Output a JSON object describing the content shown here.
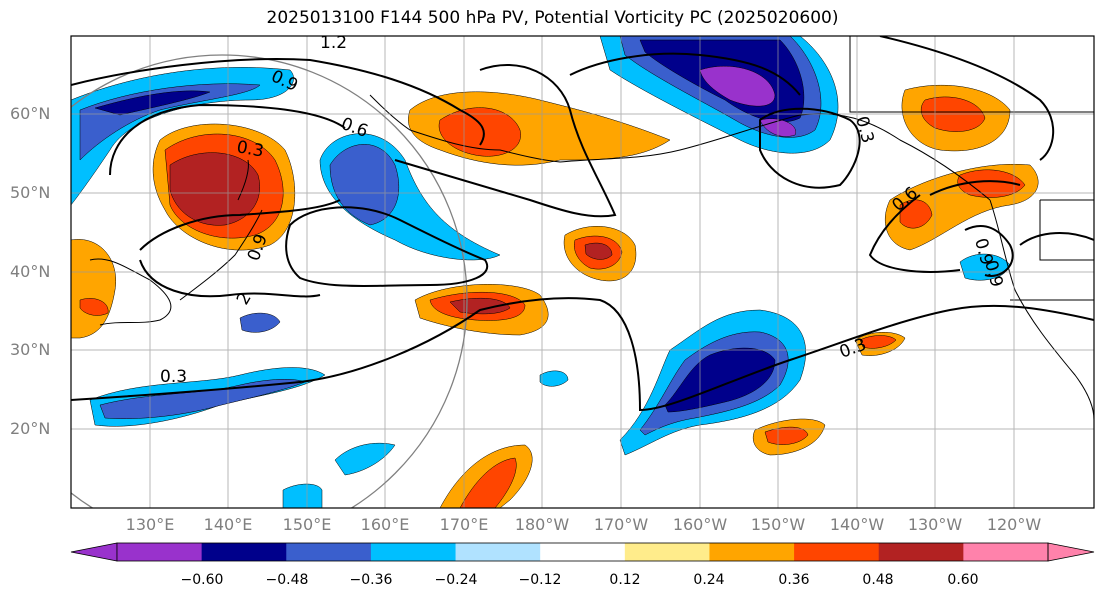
{
  "title": "2025013100 F144 500 hPa PV, Potential Vorticity PC (2025020600)",
  "lat_labels": [
    "60°N",
    "50°N",
    "40°N",
    "30°N",
    "20°N"
  ],
  "lon_labels": [
    "130°E",
    "140°E",
    "150°E",
    "160°E",
    "170°E",
    "180°W",
    "170°W",
    "160°W",
    "150°W",
    "140°W",
    "130°W",
    "120°W"
  ],
  "contour_labels": [
    "1.2",
    "0.9",
    "0.6",
    "0.3",
    "0.9",
    "2",
    "0.3",
    "0.3",
    "0.3",
    "0.6",
    "0.9",
    "0.9"
  ],
  "colorbar": {
    "ticks": [
      "−0.60",
      "−0.48",
      "−0.36",
      "−0.24",
      "−0.12",
      "0.12",
      "0.24",
      "0.36",
      "0.48",
      "0.60"
    ],
    "colors": [
      "#9932cc",
      "#00008b",
      "#3a5fcd",
      "#00bfff",
      "#b0e2ff",
      "#ffffff",
      "#ffec8b",
      "#ffa500",
      "#ff4500",
      "#b22222",
      "#ff82ab",
      "#ff82ab"
    ]
  }
}
